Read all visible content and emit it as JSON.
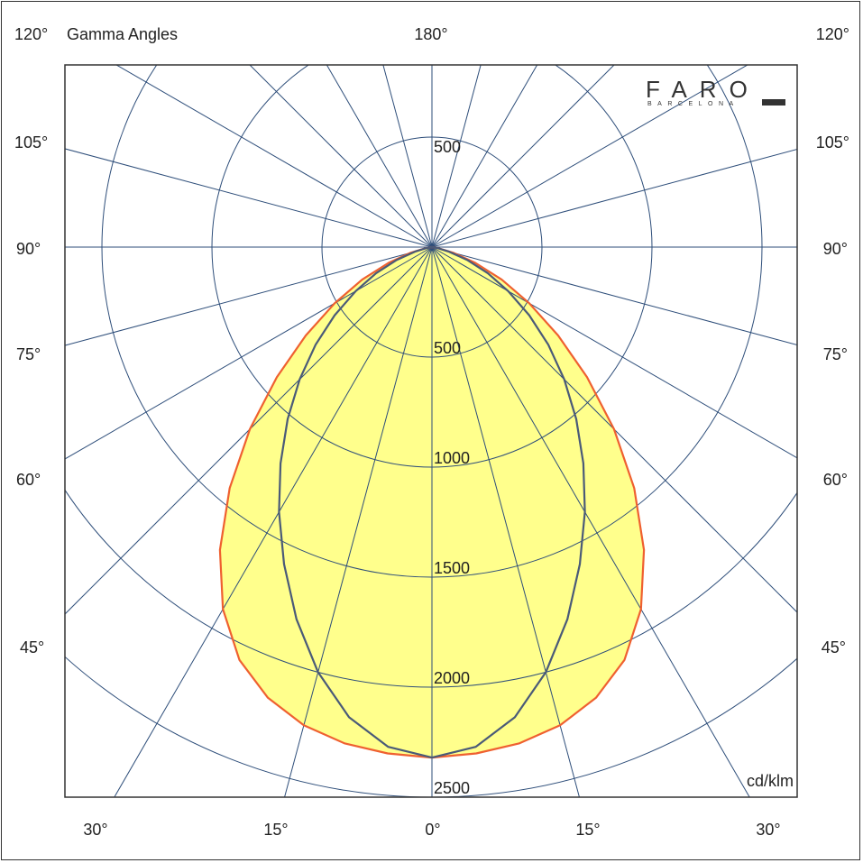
{
  "header": {
    "title": "Gamma Angles",
    "top_center_angle": "180°",
    "unit": "cd/klm"
  },
  "logo": {
    "name": "FARO",
    "subtitle": "BARCELONA"
  },
  "side_angle_labels": [
    "120°",
    "105°",
    "90°",
    "75°",
    "60°",
    "45°"
  ],
  "bottom_angle_labels": [
    "30°",
    "15°",
    "0°",
    "15°",
    "30°"
  ],
  "colors": {
    "grid": "#2e4e7a",
    "fill": "#ffff8c",
    "curve_c0": "#ef6030",
    "curve_c90": "#4a5a78",
    "axis": "#333333"
  },
  "chart_data": {
    "type": "polar",
    "title": "Gamma Angles",
    "unit": "cd/klm",
    "radial_ticks": [
      500,
      1000,
      1500,
      2000,
      2500
    ],
    "radial_max": 2500,
    "angle_step_deg": 15,
    "series": [
      {
        "gamma_deg": [
          0,
          5,
          10,
          15,
          20,
          25,
          30,
          35,
          40,
          45,
          50,
          55,
          60,
          65,
          70,
          75,
          80,
          90
        ],
        "values": [
          2320,
          2310,
          2290,
          2250,
          2180,
          2070,
          1900,
          1680,
          1430,
          1170,
          920,
          700,
          510,
          350,
          210,
          100,
          30,
          0
        ],
        "color": "#ef6030"
      },
      {
        "gamma_deg": [
          0,
          5,
          10,
          15,
          20,
          25,
          30,
          35,
          40,
          45,
          50,
          55,
          60,
          65,
          70,
          75,
          80,
          90
        ],
        "values": [
          2320,
          2280,
          2170,
          2000,
          1800,
          1590,
          1390,
          1200,
          1020,
          850,
          690,
          540,
          400,
          280,
          170,
          80,
          25,
          0
        ],
        "color": "#4a5a78"
      }
    ]
  }
}
